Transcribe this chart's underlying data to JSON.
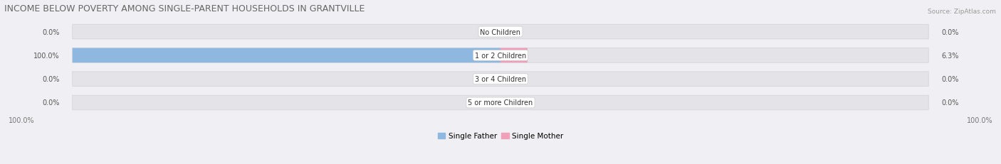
{
  "title": "INCOME BELOW POVERTY AMONG SINGLE-PARENT HOUSEHOLDS IN GRANTVILLE",
  "source": "Source: ZipAtlas.com",
  "categories": [
    "No Children",
    "1 or 2 Children",
    "3 or 4 Children",
    "5 or more Children"
  ],
  "single_father": [
    0.0,
    100.0,
    0.0,
    0.0
  ],
  "single_mother": [
    0.0,
    6.3,
    0.0,
    0.0
  ],
  "bar_max": 100.0,
  "father_color": "#8fb8e0",
  "mother_color": "#f0a0b8",
  "bar_bg_color": "#e4e4e8",
  "bar_bg_border": "#d0d0d8",
  "figsize": [
    14.06,
    2.32
  ],
  "title_fontsize": 9,
  "label_fontsize": 7,
  "category_fontsize": 7,
  "legend_fontsize": 7.5,
  "x_left_label": "100.0%",
  "x_right_label": "100.0%",
  "background_color": "#f0f0f4"
}
